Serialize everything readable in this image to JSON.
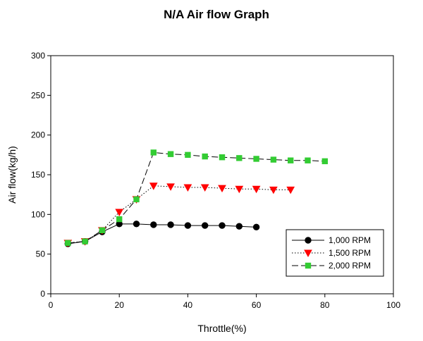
{
  "chart_data": {
    "type": "line",
    "title": "N/A Air flow Graph",
    "xlabel": "Throttle(%)",
    "ylabel": "Air flow(kg/h)",
    "xlim": [
      0,
      100
    ],
    "ylim": [
      0,
      300
    ],
    "x_ticks": [
      "0",
      "20",
      "40",
      "60",
      "80",
      "100"
    ],
    "y_ticks": [
      "0",
      "50",
      "100",
      "150",
      "200",
      "250",
      "300"
    ],
    "grid": false,
    "legend_position": "bottom-right",
    "series": [
      {
        "name": "1,000 RPM",
        "color": "#000000",
        "marker": "circle",
        "line_style": "solid",
        "x": [
          5,
          10,
          15,
          20,
          25,
          30,
          35,
          40,
          45,
          50,
          55,
          60
        ],
        "y": [
          63,
          66,
          78,
          88,
          88,
          87,
          87,
          86,
          86,
          86,
          85,
          84
        ]
      },
      {
        "name": "1,500 RPM",
        "color": "#ff0000",
        "marker": "triangle-down",
        "line_style": "dotted",
        "x": [
          5,
          10,
          15,
          20,
          25,
          30,
          35,
          40,
          45,
          50,
          55,
          60,
          65,
          70
        ],
        "y": [
          64,
          66,
          80,
          103,
          119,
          136,
          135,
          134,
          134,
          133,
          132,
          132,
          131,
          131
        ]
      },
      {
        "name": "2,000 RPM",
        "color": "#33cc33",
        "marker": "square",
        "line_style": "dashed",
        "x": [
          5,
          10,
          15,
          20,
          25,
          30,
          35,
          40,
          45,
          50,
          55,
          60,
          65,
          70,
          75,
          80
        ],
        "y": [
          64,
          66,
          80,
          94,
          119,
          178,
          176,
          175,
          173,
          172,
          171,
          170,
          169,
          168,
          168,
          167
        ]
      }
    ]
  }
}
